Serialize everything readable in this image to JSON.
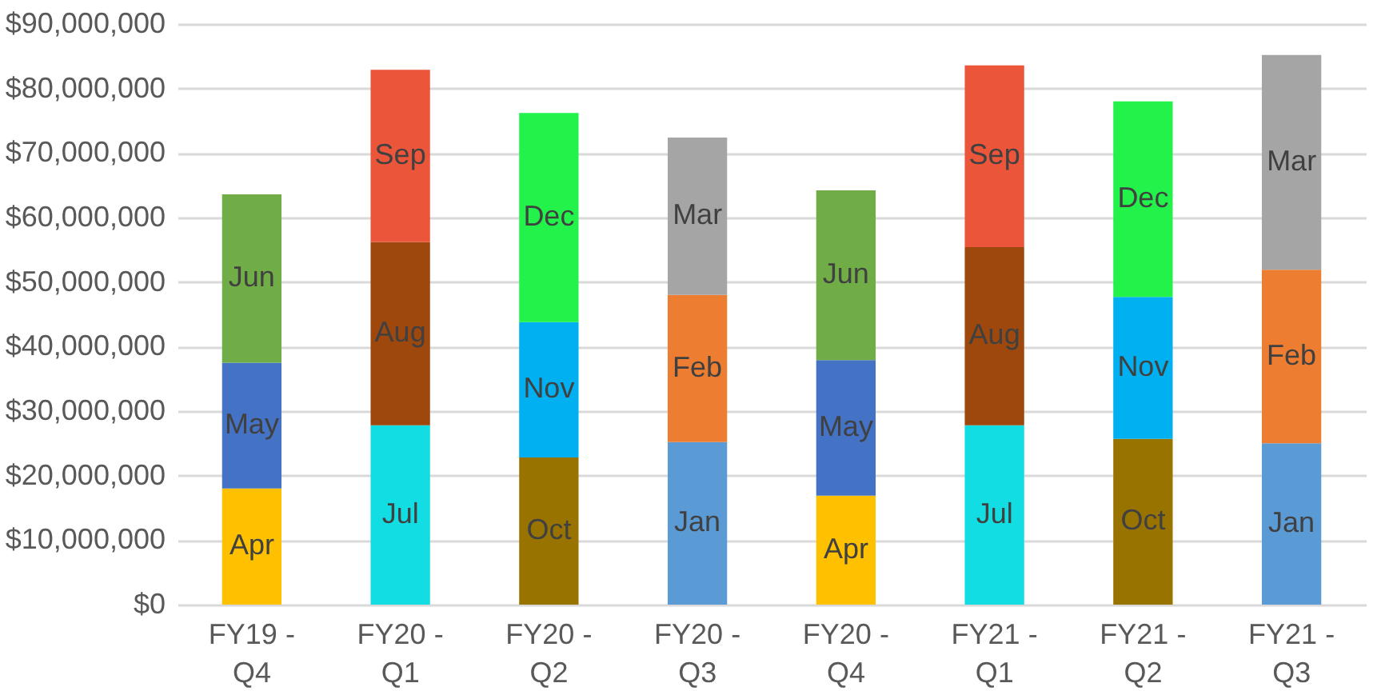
{
  "chart_data": {
    "type": "bar",
    "stacked": true,
    "data_labels": false,
    "grid": "y",
    "legend": false,
    "categories": [
      "FY19 - Q4",
      "FY20 - Q1",
      "FY20 - Q2",
      "FY20 - Q3",
      "FY20 - Q4",
      "FY21 - Q1",
      "FY21 - Q2",
      "FY21 - Q3"
    ],
    "ylim": [
      0,
      90000000
    ],
    "yticks": [
      {
        "value": 0,
        "label": "$0"
      },
      {
        "value": 10000000,
        "label": "$10,000,000"
      },
      {
        "value": 20000000,
        "label": "$20,000,000"
      },
      {
        "value": 30000000,
        "label": "$30,000,000"
      },
      {
        "value": 40000000,
        "label": "$40,000,000"
      },
      {
        "value": 50000000,
        "label": "$50,000,000"
      },
      {
        "value": 60000000,
        "label": "$60,000,000"
      },
      {
        "value": 70000000,
        "label": "$70,000,000"
      },
      {
        "value": 80000000,
        "label": "$80,000,000"
      },
      {
        "value": 90000000,
        "label": "$90,000,000"
      }
    ],
    "series": [
      {
        "name": "Jan",
        "color": "#5b9bd5",
        "values": [
          null,
          null,
          null,
          25200000,
          null,
          null,
          null,
          25000000
        ]
      },
      {
        "name": "Feb",
        "color": "#ed7d31",
        "values": [
          null,
          null,
          null,
          22800000,
          null,
          null,
          null,
          26900000
        ]
      },
      {
        "name": "Mar",
        "color": "#a5a5a5",
        "values": [
          null,
          null,
          null,
          24400000,
          null,
          null,
          null,
          33300000
        ]
      },
      {
        "name": "Apr",
        "color": "#ffc000",
        "values": [
          18000000,
          null,
          null,
          null,
          16900000,
          null,
          null,
          null
        ]
      },
      {
        "name": "May",
        "color": "#4472c4",
        "values": [
          19500000,
          null,
          null,
          null,
          21000000,
          null,
          null,
          null
        ]
      },
      {
        "name": "Jun",
        "color": "#70ad47",
        "values": [
          26100000,
          null,
          null,
          null,
          26300000,
          null,
          null,
          null
        ]
      },
      {
        "name": "Jul",
        "color": "#12dde2",
        "values": [
          null,
          27800000,
          null,
          null,
          null,
          27800000,
          null,
          null
        ]
      },
      {
        "name": "Aug",
        "color": "#9e480e",
        "values": [
          null,
          28400000,
          null,
          null,
          null,
          27600000,
          null,
          null
        ]
      },
      {
        "name": "Sep",
        "color": "#eb553a",
        "values": [
          null,
          26700000,
          null,
          null,
          null,
          28200000,
          null,
          null
        ]
      },
      {
        "name": "Oct",
        "color": "#997300",
        "values": [
          null,
          null,
          22800000,
          null,
          null,
          null,
          25700000,
          null
        ]
      },
      {
        "name": "Nov",
        "color": "#00b0f0",
        "values": [
          null,
          null,
          21000000,
          null,
          null,
          null,
          22000000,
          null
        ]
      },
      {
        "name": "Dec",
        "color": "#22f24a",
        "values": [
          null,
          null,
          32400000,
          null,
          null,
          null,
          30300000,
          null
        ]
      }
    ]
  }
}
